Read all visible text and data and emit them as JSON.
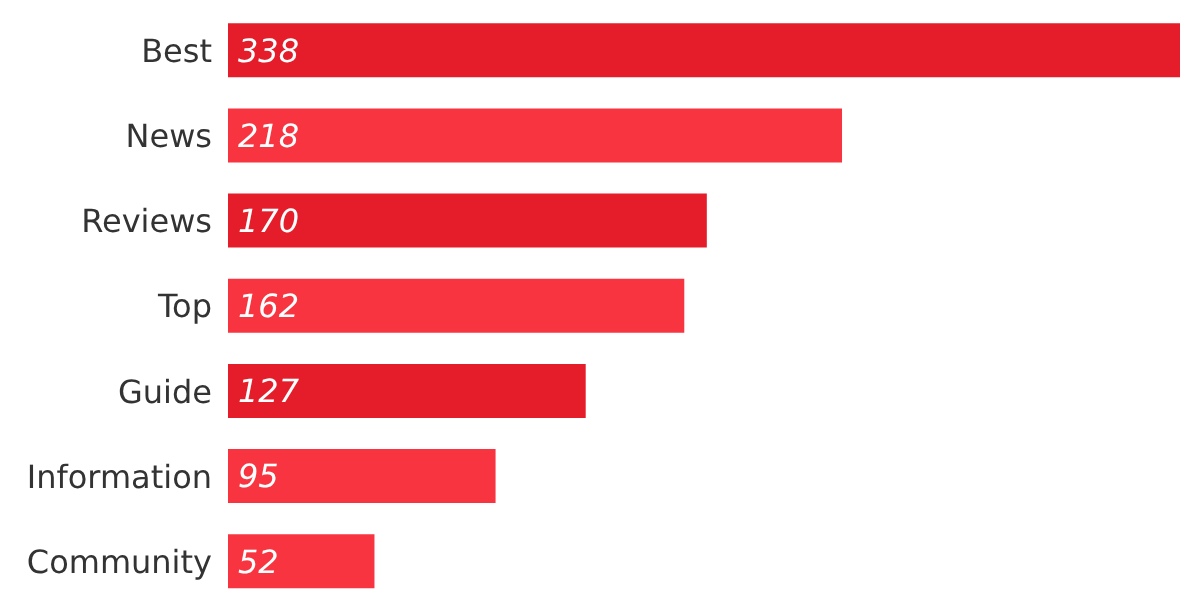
{
  "chart_data": {
    "type": "bar",
    "orientation": "horizontal",
    "categories": [
      "Best",
      "News",
      "Reviews",
      "Top",
      "Guide",
      "Information",
      "Community"
    ],
    "values": [
      338,
      218,
      170,
      162,
      127,
      95,
      52
    ],
    "colors": [
      "#e51d2b",
      "#f7343f",
      "#e51d2b",
      "#f7343f",
      "#e51d2b",
      "#f7343f",
      "#f7343f"
    ],
    "data_labels": true,
    "tick_labels": "y"
  }
}
